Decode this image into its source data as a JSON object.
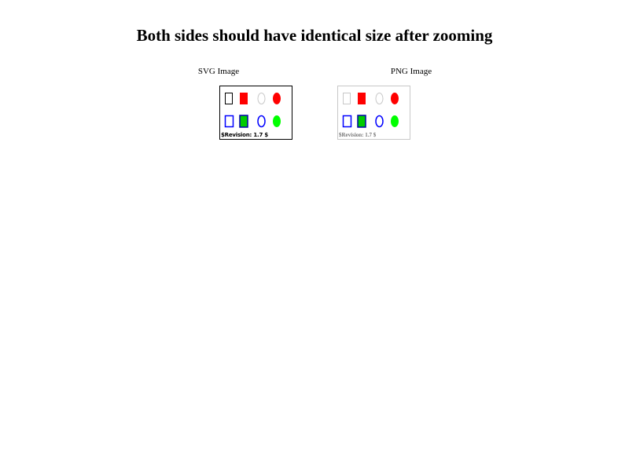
{
  "page": {
    "title": "Both sides should have identical size after zooming"
  },
  "panels": {
    "svg": {
      "caption": "SVG Image",
      "revision": "$Revision: 1.7 $"
    },
    "png": {
      "caption": "PNG Image",
      "revision": "$Revision: 1.7 $"
    }
  },
  "shapes": {
    "row1": [
      {
        "shape": "rect",
        "fill": "none",
        "stroke": "#000000"
      },
      {
        "shape": "rect",
        "fill": "#ff0000",
        "stroke": "none"
      },
      {
        "shape": "ellipse",
        "fill": "none",
        "stroke": "#c8c8c8"
      },
      {
        "shape": "ellipse",
        "fill": "#ff0000",
        "stroke": "none"
      }
    ],
    "row2": [
      {
        "shape": "rect",
        "fill": "none",
        "stroke": "#0000ff"
      },
      {
        "shape": "rect",
        "fill": "#00cc00",
        "stroke": "#0000aa"
      },
      {
        "shape": "ellipse",
        "fill": "none",
        "stroke": "#0000ff"
      },
      {
        "shape": "ellipse",
        "fill": "#00ff00",
        "stroke": "none"
      }
    ]
  },
  "colors": {
    "png_first_outline": "#c8c8c8"
  }
}
